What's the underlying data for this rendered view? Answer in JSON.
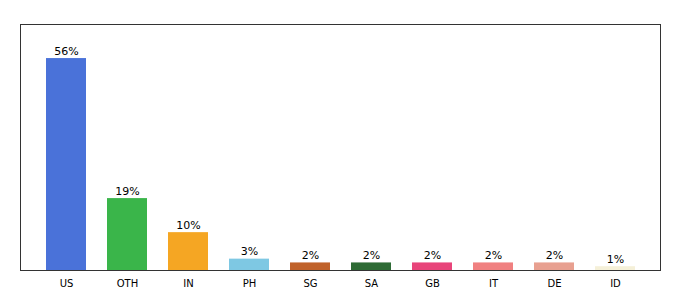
{
  "chart_data": {
    "type": "bar",
    "categories": [
      "US",
      "OTH",
      "IN",
      "PH",
      "SG",
      "SA",
      "GB",
      "IT",
      "DE",
      "ID"
    ],
    "values": [
      56,
      19,
      10,
      3,
      2,
      2,
      2,
      2,
      2,
      1
    ],
    "value_labels": [
      "56%",
      "19%",
      "10%",
      "3%",
      "2%",
      "2%",
      "2%",
      "2%",
      "2%",
      "1%"
    ],
    "colors": [
      "#4a72d9",
      "#3ab54a",
      "#f5a623",
      "#7ec8e3",
      "#c0622a",
      "#2e6b35",
      "#e8447a",
      "#f08080",
      "#e8a090",
      "#f5f0d8"
    ],
    "ylim": [
      0,
      65
    ],
    "yticks": [],
    "data_labels": true,
    "tick_labels": "x",
    "grid": false
  }
}
